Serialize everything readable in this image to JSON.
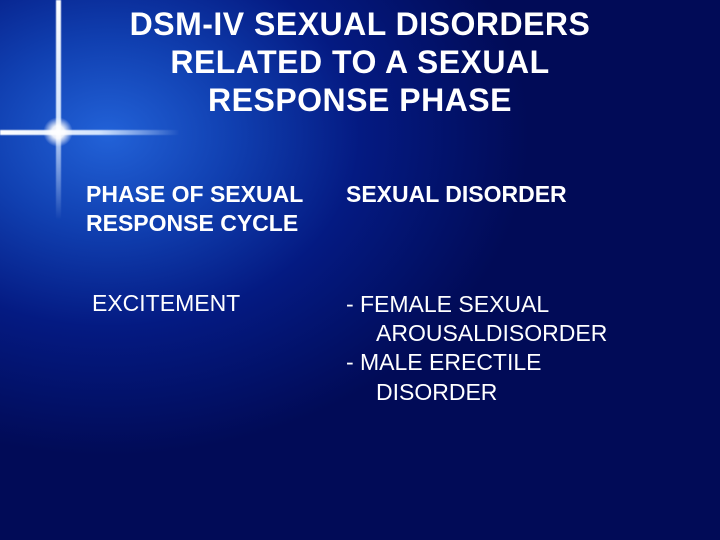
{
  "colors": {
    "background_center": "#2262d8",
    "background_outer": "#010b57",
    "text": "#ffffff",
    "flare": "#ffffff"
  },
  "typography": {
    "title_fontsize": 32,
    "title_weight": 700,
    "header_fontsize": 23,
    "header_weight": 700,
    "body_fontsize": 23,
    "body_weight": 400,
    "font_family": "Verdana"
  },
  "title": {
    "line1": "DSM-IV SEXUAL DISORDERS",
    "line2": "RELATED TO A SEXUAL",
    "line3": "RESPONSE PHASE"
  },
  "table": {
    "columns": {
      "left": {
        "line1": "PHASE OF SEXUAL",
        "line2": "RESPONSE CYCLE"
      },
      "right": "SEXUAL DISORDER"
    },
    "rows": [
      {
        "phase": "EXCITEMENT",
        "disorders": [
          {
            "dash": "-",
            "line1": "FEMALE SEXUAL",
            "line2": "AROUSALDISORDER"
          },
          {
            "dash": "-",
            "line1": "MALE ERECTILE",
            "line2": "DISORDER"
          }
        ]
      }
    ]
  }
}
